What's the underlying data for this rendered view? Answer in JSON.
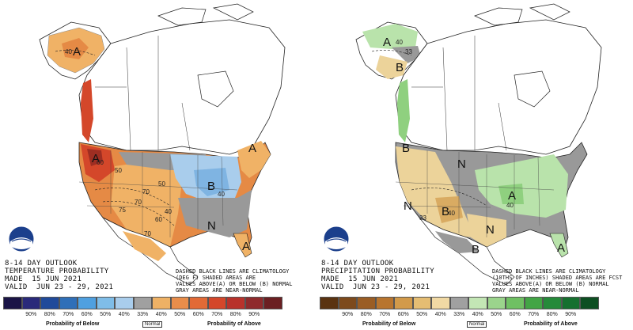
{
  "temperature": {
    "title_lines": [
      "8-14 DAY OUTLOOK",
      "TEMPERATURE PROBABILITY",
      "MADE  15 JUN 2021",
      "VALID  JUN 23 - 29, 2021"
    ],
    "note_lines": [
      "DASHED BLACK LINES ARE CLIMATOLOGY",
      "(DEG F) SHADED AREAS ARE",
      "VALUES ABOVE(A) OR BELOW (B) NORMAL",
      "GRAY AREAS ARE NEAR-NORMAL"
    ],
    "map_letters": [
      "A",
      "A",
      "A",
      "B",
      "N",
      "A"
    ],
    "contour_labels": [
      "40",
      "60",
      "50",
      "70",
      "75",
      "70",
      "50",
      "40",
      "60",
      "70",
      "40"
    ],
    "legend": {
      "below_label": "Probability of Below",
      "normal_label": "Normal",
      "above_label": "Probability of Above",
      "ticks_below": [
        "90%",
        "80%",
        "70%",
        "60%",
        "50%",
        "40%"
      ],
      "tick_mid": "33%",
      "ticks_above": [
        "40%",
        "50%",
        "60%",
        "70%",
        "80%",
        "90%"
      ],
      "colors_below": [
        "#1a1446",
        "#2a2a7a",
        "#204a9a",
        "#2f6fb8",
        "#4fa0e0",
        "#7fbde8",
        "#a9cdec"
      ],
      "color_normal": "#a0a0a0",
      "colors_above": [
        "#eeb165",
        "#e88d4a",
        "#e26a36",
        "#d4472a",
        "#b8322b",
        "#8f2a2c",
        "#6b1f22"
      ]
    },
    "colors": {
      "above_low": "#f0b266",
      "above_mid": "#e58a45",
      "above_high": "#d4472a",
      "above_max": "#9e2e22",
      "below_low": "#a9cdec",
      "below_mid": "#7fb4e2",
      "normal": "#999999",
      "land": "#ffffff"
    }
  },
  "precipitation": {
    "title_lines": [
      "8-14 DAY OUTLOOK",
      "PRECIPITATION PROBABILITY",
      "MADE  15 JUN 2021",
      "VALID  JUN 23 - 29, 2021"
    ],
    "note_lines": [
      "DASHED BLACK LINES ARE CLIMATOLOGY",
      "(10THS OF INCHES) SHADED AREAS ARE FCST",
      "VALUES ABOVE(A) OR BELOW (B) NORMAL",
      "GRAY AREAS ARE NEAR-NORMAL"
    ],
    "map_letters": [
      "A",
      "B",
      "B",
      "N",
      "B",
      "A",
      "N",
      "N",
      "B",
      "A"
    ],
    "contour_labels": [
      "40",
      "33",
      "33",
      "40",
      "40"
    ],
    "legend": {
      "below_label": "Probability of Below",
      "normal_label": "Normal",
      "above_label": "Probability of Above",
      "ticks_below": [
        "90%",
        "80%",
        "70%",
        "60%",
        "50%",
        "40%"
      ],
      "tick_mid": "33%",
      "ticks_above": [
        "40%",
        "50%",
        "60%",
        "70%",
        "80%",
        "90%"
      ],
      "colors_below": [
        "#5a3311",
        "#7d4a1c",
        "#9a5d24",
        "#b8752f",
        "#d29a4a",
        "#e5bd73",
        "#f1d9a4"
      ],
      "color_normal": "#a0a0a0",
      "colors_above": [
        "#c3e6b5",
        "#9bd48c",
        "#6fc063",
        "#42a545",
        "#258a3a",
        "#16702f",
        "#0d4f22"
      ]
    },
    "colors": {
      "above_low": "#b9e3ab",
      "above_mid": "#8fd07f",
      "below_low": "#ecd39a",
      "below_mid": "#d9ab62",
      "normal": "#999999",
      "land": "#ffffff"
    }
  }
}
